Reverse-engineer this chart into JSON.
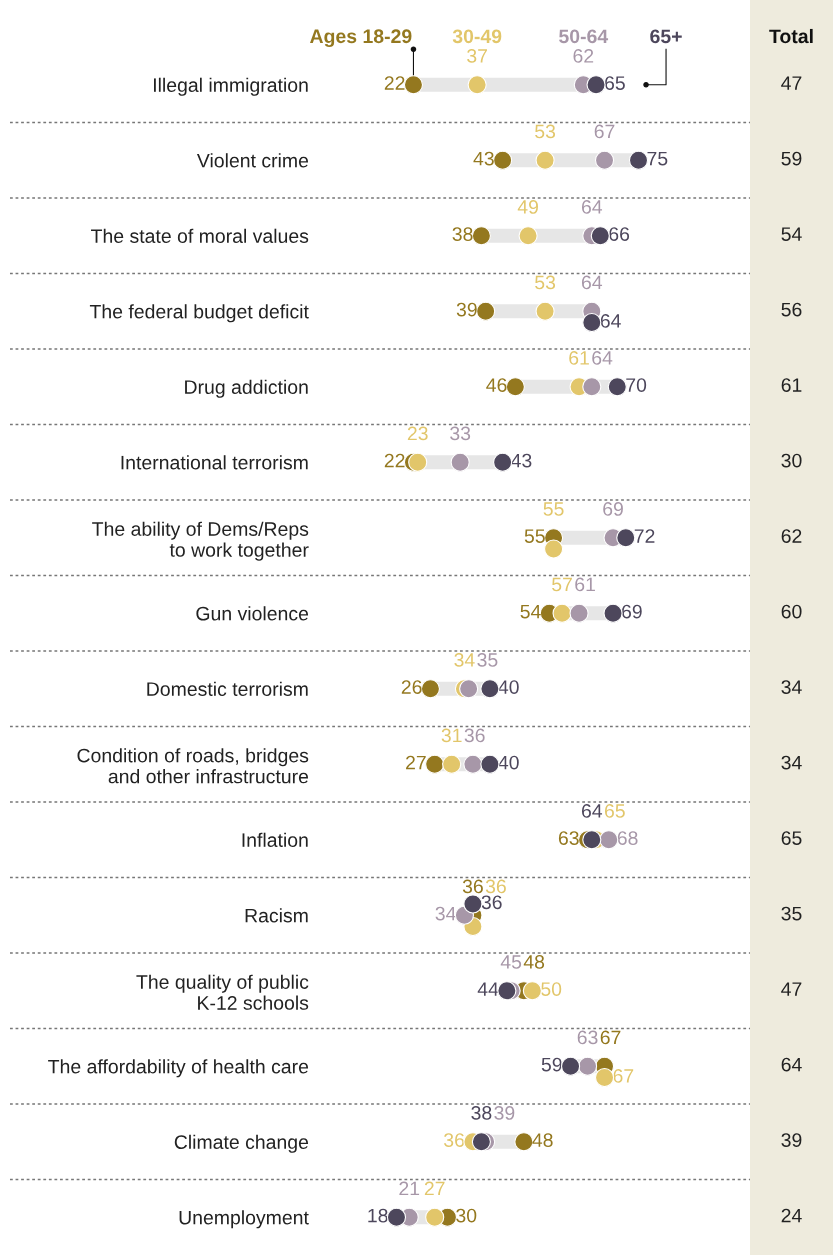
{
  "chart_data": [
    {
      "type": "scatter",
      "orientation": "horizontal",
      "categories": [
        "Illegal immigration",
        "Violent crime",
        "The state of moral values",
        "The federal budget deficit",
        "Drug addiction",
        "International terrorism",
        "The ability of Dems/Reps\nto work together",
        "Gun violence",
        "Domestic terrorism",
        "Condition of roads, bridges\nand other infrastructure",
        "Inflation",
        "Racism",
        "The quality of public\nK-12 schools",
        "The affordability of health care",
        "Climate change",
        "Unemployment"
      ],
      "series": [
        {
          "name": "Ages 18-29",
          "color": "#94781f",
          "values": [
            22,
            43,
            38,
            39,
            46,
            22,
            55,
            54,
            26,
            27,
            63,
            36,
            48,
            67,
            48,
            30
          ]
        },
        {
          "name": "30-49",
          "color": "#e2c66a",
          "values": [
            37,
            53,
            49,
            53,
            61,
            23,
            55,
            57,
            34,
            31,
            65,
            36,
            50,
            67,
            36,
            27
          ]
        },
        {
          "name": "50-64",
          "color": "#a797a8",
          "values": [
            62,
            67,
            64,
            64,
            64,
            33,
            69,
            61,
            35,
            36,
            68,
            34,
            45,
            63,
            39,
            21
          ]
        },
        {
          "name": "65+",
          "color": "#4d475c",
          "values": [
            65,
            75,
            66,
            64,
            70,
            43,
            72,
            69,
            40,
            40,
            64,
            36,
            44,
            59,
            38,
            18
          ]
        }
      ],
      "data_labels": true,
      "marker": "circle",
      "legend": "top",
      "tick_labels": "y"
    },
    {
      "type": "other",
      "title": "Total",
      "values": [
        47,
        59,
        54,
        56,
        61,
        30,
        62,
        60,
        34,
        34,
        65,
        35,
        47,
        64,
        39,
        24
      ],
      "color": "#eeebdd",
      "data_labels": true
    }
  ]
}
